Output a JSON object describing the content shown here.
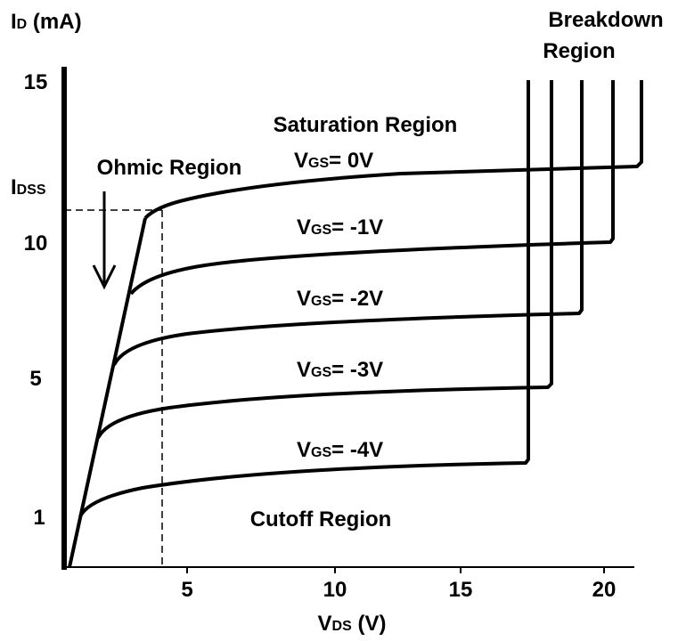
{
  "y_axis": {
    "label": {
      "main": "I",
      "sub": "D",
      "rest": " (mA)"
    },
    "ticks": [
      "15",
      "10",
      "5",
      "1"
    ],
    "idss": {
      "main": "I",
      "sub": "DSS"
    }
  },
  "x_axis": {
    "label": {
      "main": "V",
      "sub": "DS",
      "rest": " (V)"
    },
    "ticks": [
      "5",
      "10",
      "15",
      "20"
    ]
  },
  "regions": {
    "ohmic": "Ohmic Region",
    "saturation": "Saturation Region",
    "cutoff": "Cutoff Region",
    "breakdown": [
      "Breakdown",
      "Region"
    ]
  },
  "curves": [
    {
      "main": "V",
      "sub": "GS",
      "rest": "= 0V"
    },
    {
      "main": "V",
      "sub": "GS",
      "rest": "= -1V"
    },
    {
      "main": "V",
      "sub": "GS",
      "rest": "= -2V"
    },
    {
      "main": "V",
      "sub": "GS",
      "rest": "= -3V"
    },
    {
      "main": "V",
      "sub": "GS",
      "rest": "= -4V"
    }
  ]
}
